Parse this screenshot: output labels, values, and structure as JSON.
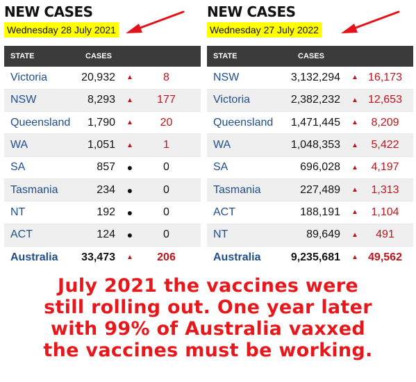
{
  "left": {
    "title": "NEW CASES",
    "date": "Wednesday 28 July 2021",
    "headers": {
      "state": "STATE",
      "cases": "CASES"
    },
    "rows": [
      {
        "state": "Victoria",
        "cases": "20,932",
        "indicator": "up",
        "change": "8"
      },
      {
        "state": "NSW",
        "cases": "8,293",
        "indicator": "up",
        "change": "177"
      },
      {
        "state": "Queensland",
        "cases": "1,790",
        "indicator": "up",
        "change": "20"
      },
      {
        "state": "WA",
        "cases": "1,051",
        "indicator": "up",
        "change": "1"
      },
      {
        "state": "SA",
        "cases": "857",
        "indicator": "dot",
        "change": "0"
      },
      {
        "state": "Tasmania",
        "cases": "234",
        "indicator": "dot",
        "change": "0"
      },
      {
        "state": "NT",
        "cases": "192",
        "indicator": "dot",
        "change": "0"
      },
      {
        "state": "ACT",
        "cases": "124",
        "indicator": "dot",
        "change": "0"
      }
    ],
    "total": {
      "state": "Australia",
      "cases": "33,473",
      "indicator": "up",
      "change": "206"
    }
  },
  "right": {
    "title": "NEW CASES",
    "date": "Wednesday 27 July 2022",
    "headers": {
      "state": "STATE",
      "cases": "CASES"
    },
    "rows": [
      {
        "state": "NSW",
        "cases": "3,132,294",
        "indicator": "up",
        "change": "16,173"
      },
      {
        "state": "Victoria",
        "cases": "2,382,232",
        "indicator": "up",
        "change": "12,653"
      },
      {
        "state": "Queensland",
        "cases": "1,471,445",
        "indicator": "up",
        "change": "8,209"
      },
      {
        "state": "WA",
        "cases": "1,048,353",
        "indicator": "up",
        "change": "5,422"
      },
      {
        "state": "SA",
        "cases": "696,028",
        "indicator": "up",
        "change": "4,197"
      },
      {
        "state": "Tasmania",
        "cases": "227,489",
        "indicator": "up",
        "change": "1,313"
      },
      {
        "state": "ACT",
        "cases": "188,191",
        "indicator": "up",
        "change": "1,104"
      },
      {
        "state": "NT",
        "cases": "89,649",
        "indicator": "up",
        "change": "491"
      }
    ],
    "total": {
      "state": "Australia",
      "cases": "9,235,681",
      "indicator": "up",
      "change": "49,562"
    }
  },
  "caption": {
    "lines": [
      "July 2021 the vaccines were",
      "still rolling out. One year later",
      "with 99% of Australia vaxxed",
      "the vaccines must be working."
    ]
  },
  "colors": {
    "highlight": "#ffff00",
    "arrow": "#e3121b",
    "caption": "#e8171c",
    "state_link": "#1f4e8c",
    "increase": "#c0141c",
    "header_bg": "#3b3b3b"
  },
  "icons": {
    "up": "triangle-up-icon",
    "dot": "bullet-icon",
    "arrow": "red-arrow-icon"
  }
}
